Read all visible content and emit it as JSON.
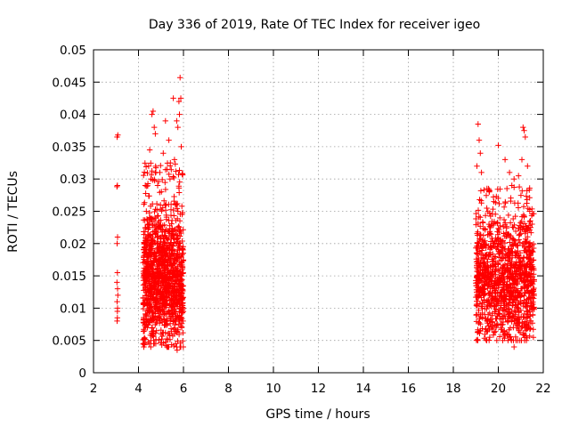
{
  "chart_data": {
    "type": "scatter",
    "title": "Day 336 of 2019, Rate Of TEC Index for receiver igeo",
    "xlabel": "GPS time / hours",
    "ylabel": "ROTI / TECUs",
    "xlim": [
      2,
      22
    ],
    "ylim": [
      0,
      0.05
    ],
    "x_ticks": [
      2,
      4,
      6,
      8,
      10,
      12,
      14,
      16,
      18,
      20,
      22
    ],
    "y_ticks": [
      0,
      0.005,
      0.01,
      0.015,
      0.02,
      0.025,
      0.03,
      0.035,
      0.04,
      0.045,
      0.05
    ],
    "x_tick_labels": [
      "2",
      "4",
      "6",
      "8",
      "10",
      "12",
      "14",
      "16",
      "18",
      "20",
      "22"
    ],
    "y_tick_labels": [
      "0",
      "0.005",
      "0.01",
      "0.015",
      "0.02",
      "0.025",
      "0.03",
      "0.035",
      "0.04",
      "0.045",
      "0.05"
    ],
    "grid": true,
    "marker": "plus",
    "color": "#ff0000",
    "series": [
      {
        "name": "ROTI",
        "points": [
          [
            3.05,
            0.0365
          ],
          [
            3.08,
            0.0368
          ],
          [
            3.06,
            0.029
          ],
          [
            3.04,
            0.0288
          ],
          [
            3.07,
            0.021
          ],
          [
            3.05,
            0.02
          ],
          [
            3.06,
            0.0155
          ],
          [
            3.04,
            0.014
          ],
          [
            3.08,
            0.012
          ],
          [
            3.05,
            0.011
          ],
          [
            3.07,
            0.01
          ],
          [
            3.06,
            0.0085
          ],
          [
            3.05,
            0.008
          ],
          [
            3.07,
            0.013
          ],
          [
            3.06,
            0.0095
          ],
          [
            4.3,
            0.029
          ],
          [
            4.35,
            0.025
          ],
          [
            4.4,
            0.018
          ],
          [
            4.45,
            0.032
          ],
          [
            4.5,
            0.0345
          ],
          [
            4.6,
            0.04
          ],
          [
            4.65,
            0.0405
          ],
          [
            4.7,
            0.038
          ],
          [
            4.75,
            0.037
          ],
          [
            4.55,
            0.03
          ],
          [
            5.2,
            0.039
          ],
          [
            5.35,
            0.036
          ],
          [
            5.55,
            0.0425
          ],
          [
            5.7,
            0.039
          ],
          [
            5.75,
            0.038
          ],
          [
            5.8,
            0.042
          ],
          [
            5.85,
            0.0457
          ],
          [
            5.88,
            0.0425
          ],
          [
            5.82,
            0.04
          ],
          [
            5.9,
            0.035
          ],
          [
            5.6,
            0.033
          ],
          [
            5.4,
            0.03
          ],
          [
            5.1,
            0.034
          ],
          [
            4.95,
            0.031
          ],
          [
            4.85,
            0.029
          ],
          [
            5.45,
            0.0068
          ],
          [
            5.6,
            0.006
          ],
          [
            5.65,
            0.0045
          ],
          [
            5.7,
            0.004
          ],
          [
            5.72,
            0.0035
          ],
          [
            4.8,
            0.0065
          ],
          [
            5.0,
            0.006
          ],
          [
            5.2,
            0.0062
          ],
          [
            4.4,
            0.007
          ],
          [
            4.3,
            0.0075
          ],
          [
            19.1,
            0.0385
          ],
          [
            19.15,
            0.036
          ],
          [
            19.2,
            0.034
          ],
          [
            19.25,
            0.031
          ],
          [
            19.05,
            0.032
          ],
          [
            20.0,
            0.0352
          ],
          [
            20.3,
            0.033
          ],
          [
            20.5,
            0.031
          ],
          [
            20.6,
            0.029
          ],
          [
            20.7,
            0.03
          ],
          [
            21.1,
            0.038
          ],
          [
            21.15,
            0.0375
          ],
          [
            21.2,
            0.0365
          ],
          [
            21.05,
            0.033
          ],
          [
            20.9,
            0.0305
          ],
          [
            21.3,
            0.032
          ],
          [
            21.4,
            0.025
          ],
          [
            21.5,
            0.023
          ],
          [
            19.6,
            0.028
          ],
          [
            19.8,
            0.0265
          ],
          [
            20.7,
            0.004
          ],
          [
            20.5,
            0.0055
          ],
          [
            20.4,
            0.006
          ],
          [
            19.9,
            0.007
          ],
          [
            21.2,
            0.0065
          ],
          [
            21.35,
            0.007
          ],
          [
            19.6,
            0.008
          ],
          [
            19.3,
            0.0085
          ],
          [
            21.45,
            0.008
          ],
          [
            20.1,
            0.0075
          ]
        ],
        "clusters": [
          {
            "x_range": [
              4.2,
              6.0
            ],
            "y_range": [
              0.004,
              0.038
            ],
            "y_center": 0.0145,
            "y_spread": 0.0048,
            "count": 1250
          },
          {
            "x_range": [
              19.0,
              21.6
            ],
            "y_range": [
              0.005,
              0.033
            ],
            "y_center": 0.0145,
            "y_spread": 0.0045,
            "count": 1200
          }
        ]
      }
    ]
  }
}
